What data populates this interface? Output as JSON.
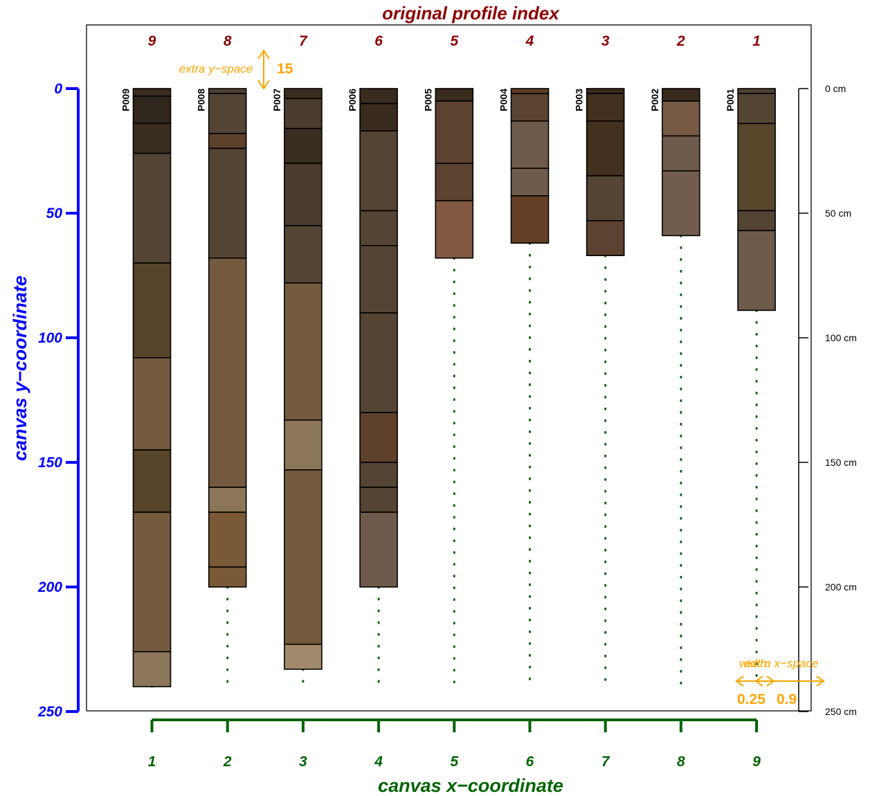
{
  "chart_data": {
    "type": "soil-profile-sketch",
    "top_title": "original profile index",
    "xlabel": "canvas x−coordinate",
    "ylabel": "canvas y−coordinate",
    "x_ticks": [
      1,
      2,
      3,
      4,
      5,
      6,
      7,
      8,
      9
    ],
    "y_ticks": [
      0,
      50,
      100,
      150,
      200,
      250
    ],
    "ylim": [
      0,
      250
    ],
    "depth_unit": "cm",
    "depth_ticks": [
      0,
      50,
      100,
      150,
      200,
      250
    ],
    "max_depth": 240,
    "annotations": {
      "extra_y_space_label": "extra y−space",
      "extra_y_space_value": "15",
      "width_label": "width",
      "extra_x_space_label": "extra x−space",
      "width_value": "0.25",
      "extra_x_space_value": "0.9"
    },
    "profiles": [
      {
        "id": "P009",
        "index": 9,
        "x": 1,
        "bottom": 240,
        "horizons": [
          {
            "top": 0,
            "bottom": 3,
            "color": "#3a2b1f"
          },
          {
            "top": 3,
            "bottom": 14,
            "color": "#2f261c"
          },
          {
            "top": 14,
            "bottom": 26,
            "color": "#3a2d21"
          },
          {
            "top": 26,
            "bottom": 70,
            "color": "#544434"
          },
          {
            "top": 70,
            "bottom": 108,
            "color": "#58432b"
          },
          {
            "top": 108,
            "bottom": 145,
            "color": "#735a3e"
          },
          {
            "top": 145,
            "bottom": 170,
            "color": "#58432b"
          },
          {
            "top": 170,
            "bottom": 226,
            "color": "#735a3e"
          },
          {
            "top": 226,
            "bottom": 240,
            "color": "#8c765a"
          }
        ]
      },
      {
        "id": "P008",
        "index": 8,
        "x": 2,
        "bottom": 200,
        "horizons": [
          {
            "top": 0,
            "bottom": 2,
            "color": "#4d4033"
          },
          {
            "top": 2,
            "bottom": 18,
            "color": "#544434"
          },
          {
            "top": 18,
            "bottom": 24,
            "color": "#5e412a"
          },
          {
            "top": 24,
            "bottom": 68,
            "color": "#544434"
          },
          {
            "top": 68,
            "bottom": 160,
            "color": "#735a3e"
          },
          {
            "top": 160,
            "bottom": 170,
            "color": "#8c765a"
          },
          {
            "top": 170,
            "bottom": 192,
            "color": "#7a5a36"
          },
          {
            "top": 192,
            "bottom": 200,
            "color": "#7a5a36"
          }
        ]
      },
      {
        "id": "P007",
        "index": 7,
        "x": 3,
        "bottom": 233,
        "horizons": [
          {
            "top": 0,
            "bottom": 4,
            "color": "#3a2d21"
          },
          {
            "top": 4,
            "bottom": 16,
            "color": "#4a3c2e"
          },
          {
            "top": 16,
            "bottom": 30,
            "color": "#3a2d21"
          },
          {
            "top": 30,
            "bottom": 55,
            "color": "#4a3c2e"
          },
          {
            "top": 55,
            "bottom": 78,
            "color": "#544434"
          },
          {
            "top": 78,
            "bottom": 133,
            "color": "#735a3e"
          },
          {
            "top": 133,
            "bottom": 153,
            "color": "#8c765a"
          },
          {
            "top": 153,
            "bottom": 223,
            "color": "#735a3e"
          },
          {
            "top": 223,
            "bottom": 233,
            "color": "#a18a6b"
          }
        ]
      },
      {
        "id": "P006",
        "index": 6,
        "x": 4,
        "bottom": 200,
        "horizons": [
          {
            "top": 0,
            "bottom": 6,
            "color": "#3a2b1f"
          },
          {
            "top": 6,
            "bottom": 17,
            "color": "#3a2b1f"
          },
          {
            "top": 17,
            "bottom": 49,
            "color": "#544434"
          },
          {
            "top": 49,
            "bottom": 63,
            "color": "#544434"
          },
          {
            "top": 63,
            "bottom": 90,
            "color": "#554434"
          },
          {
            "top": 90,
            "bottom": 130,
            "color": "#554434"
          },
          {
            "top": 130,
            "bottom": 150,
            "color": "#5e412a"
          },
          {
            "top": 150,
            "bottom": 160,
            "color": "#544434"
          },
          {
            "top": 160,
            "bottom": 170,
            "color": "#544434"
          },
          {
            "top": 170,
            "bottom": 200,
            "color": "#6e5b4b"
          }
        ]
      },
      {
        "id": "P005",
        "index": 5,
        "x": 5,
        "bottom": 68,
        "horizons": [
          {
            "top": 0,
            "bottom": 5,
            "color": "#3a2b1f"
          },
          {
            "top": 5,
            "bottom": 30,
            "color": "#5c4230"
          },
          {
            "top": 30,
            "bottom": 45,
            "color": "#5c4230"
          },
          {
            "top": 45,
            "bottom": 68,
            "color": "#825840"
          }
        ]
      },
      {
        "id": "P004",
        "index": 4,
        "x": 6,
        "bottom": 62,
        "horizons": [
          {
            "top": 0,
            "bottom": 2,
            "color": "#5c3c22"
          },
          {
            "top": 2,
            "bottom": 13,
            "color": "#5a4330"
          },
          {
            "top": 13,
            "bottom": 32,
            "color": "#6e5b4b"
          },
          {
            "top": 32,
            "bottom": 43,
            "color": "#6e5b4b"
          },
          {
            "top": 43,
            "bottom": 62,
            "color": "#643f26"
          }
        ]
      },
      {
        "id": "P003",
        "index": 3,
        "x": 7,
        "bottom": 67,
        "horizons": [
          {
            "top": 0,
            "bottom": 2,
            "color": "#3a2b1f"
          },
          {
            "top": 2,
            "bottom": 13,
            "color": "#43301f"
          },
          {
            "top": 13,
            "bottom": 35,
            "color": "#43301f"
          },
          {
            "top": 35,
            "bottom": 53,
            "color": "#544434"
          },
          {
            "top": 53,
            "bottom": 67,
            "color": "#5c4230"
          }
        ]
      },
      {
        "id": "P002",
        "index": 2,
        "x": 8,
        "bottom": 59,
        "horizons": [
          {
            "top": 0,
            "bottom": 5,
            "color": "#3a2b1f"
          },
          {
            "top": 5,
            "bottom": 19,
            "color": "#765a45"
          },
          {
            "top": 19,
            "bottom": 33,
            "color": "#6e5b4b"
          },
          {
            "top": 33,
            "bottom": 59,
            "color": "#725c4d"
          }
        ]
      },
      {
        "id": "P001",
        "index": 1,
        "x": 9,
        "bottom": 89,
        "horizons": [
          {
            "top": 0,
            "bottom": 2,
            "color": "#4d4033"
          },
          {
            "top": 2,
            "bottom": 14,
            "color": "#544434"
          },
          {
            "top": 14,
            "bottom": 49,
            "color": "#58452a"
          },
          {
            "top": 49,
            "bottom": 57,
            "color": "#544434"
          },
          {
            "top": 57,
            "bottom": 89,
            "color": "#6e5b4b"
          }
        ]
      }
    ]
  },
  "colors": {
    "title": "#8b0000",
    "y_axis": "#0000ff",
    "x_axis": "#006400",
    "annotation": "#ffa500",
    "profile_line": "#000000",
    "connector": "#006400"
  }
}
